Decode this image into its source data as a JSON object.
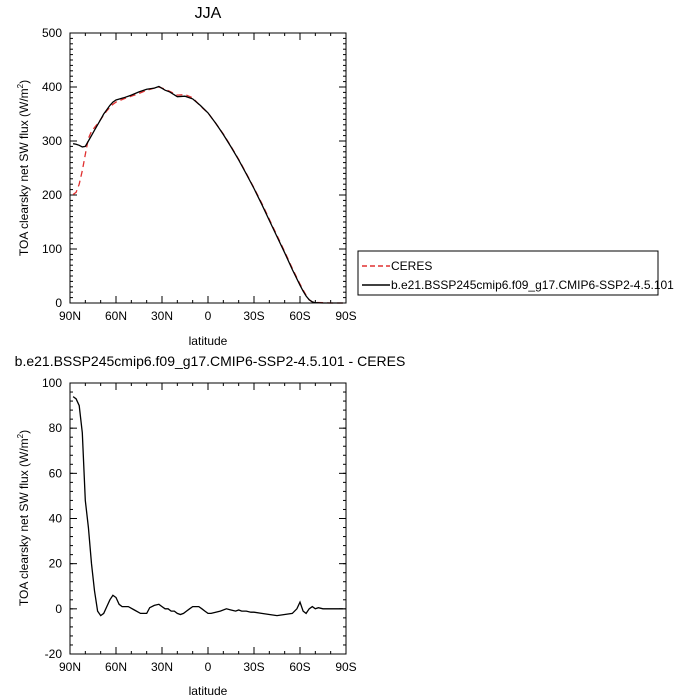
{
  "chart_data": [
    {
      "type": "line",
      "title": "JJA",
      "xlabel": "latitude",
      "ylabel": "TOA clearsky net SW flux (W/m",
      "ylabel_sup": "2",
      "ylabel_close": ")",
      "xlim": [
        90,
        -90
      ],
      "ylim": [
        0,
        500
      ],
      "xticks": [
        90,
        60,
        30,
        0,
        -30,
        -60,
        -90
      ],
      "xtick_labels": [
        "90N",
        "60N",
        "30N",
        "0",
        "30S",
        "60S",
        "90S"
      ],
      "yticks": [
        0,
        100,
        200,
        300,
        400,
        500
      ],
      "ytick_labels": [
        "0",
        "100",
        "200",
        "300",
        "400",
        "500"
      ],
      "legend": {
        "position": "right"
      },
      "series": [
        {
          "name": "CERES",
          "color": "#e03030",
          "dash": "dashed",
          "x": [
            88,
            86,
            84,
            82,
            80,
            78,
            76,
            74,
            72,
            70,
            68,
            66,
            64,
            62,
            60,
            55,
            50,
            45,
            40,
            35,
            32,
            28,
            25,
            20,
            15,
            10,
            5,
            0,
            -5,
            -10,
            -15,
            -20,
            -25,
            -30,
            -35,
            -40,
            -45,
            -50,
            -55,
            -60,
            -62,
            -64,
            -66,
            -68,
            -70,
            -75,
            -80,
            -85,
            -88
          ],
          "y": [
            201,
            205,
            220,
            245,
            275,
            305,
            318,
            325,
            332,
            340,
            348,
            356,
            362,
            368,
            372,
            378,
            383,
            388,
            394,
            398,
            400,
            396,
            392,
            385,
            386,
            380,
            365,
            352,
            333,
            313,
            290,
            266,
            240,
            213,
            185,
            155,
            125,
            95,
            64,
            35,
            24,
            14,
            6,
            2,
            1,
            0.5,
            0,
            0,
            0
          ]
        },
        {
          "name": "b.e21.BSSP245cmip6.f09_g17.CMIP6-SSP2-4.5.101",
          "color": "#000000",
          "dash": "solid",
          "x": [
            88,
            86,
            84,
            82,
            80,
            78,
            76,
            74,
            72,
            70,
            68,
            66,
            64,
            62,
            60,
            55,
            50,
            45,
            40,
            35,
            32,
            28,
            25,
            20,
            15,
            10,
            5,
            0,
            -5,
            -10,
            -15,
            -20,
            -25,
            -30,
            -35,
            -40,
            -45,
            -50,
            -55,
            -60,
            -62,
            -64,
            -66,
            -68,
            -70,
            -75,
            -80,
            -85,
            -88
          ],
          "y": [
            295,
            294,
            292,
            289,
            290,
            300,
            310,
            320,
            330,
            340,
            350,
            358,
            366,
            372,
            376,
            380,
            385,
            391,
            396,
            398,
            401,
            394,
            391,
            382,
            383,
            378,
            366,
            352,
            333,
            312,
            289,
            265,
            239,
            212,
            183,
            153,
            123,
            93,
            62,
            33,
            22,
            13,
            6,
            2,
            0.5,
            0,
            0,
            0,
            0
          ]
        }
      ]
    },
    {
      "type": "line",
      "title": "b.e21.BSSP245cmip6.f09_g17.CMIP6-SSP2-4.5.101 - CERES",
      "xlabel": "latitude",
      "ylabel": "TOA clearsky net SW flux (W/m",
      "ylabel_sup": "2",
      "ylabel_close": ")",
      "xlim": [
        90,
        -90
      ],
      "ylim": [
        -20,
        100
      ],
      "xticks": [
        90,
        60,
        30,
        0,
        -30,
        -60,
        -90
      ],
      "xtick_labels": [
        "90N",
        "60N",
        "30N",
        "0",
        "30S",
        "60S",
        "90S"
      ],
      "yticks": [
        -20,
        0,
        20,
        40,
        60,
        80,
        100
      ],
      "ytick_labels": [
        "-20",
        "0",
        "20",
        "40",
        "60",
        "80",
        "100"
      ],
      "series": [
        {
          "color": "#000000",
          "dash": "solid",
          "x": [
            88,
            86,
            84,
            82,
            80,
            78,
            76,
            74,
            72,
            70,
            68,
            66,
            64,
            62,
            60,
            58,
            56,
            52,
            48,
            44,
            40,
            38,
            35,
            32,
            30,
            28,
            26,
            24,
            22,
            20,
            18,
            16,
            14,
            12,
            10,
            8,
            6,
            4,
            2,
            0,
            -2,
            -5,
            -8,
            -12,
            -15,
            -18,
            -20,
            -22,
            -25,
            -28,
            -30,
            -35,
            -40,
            -45,
            -50,
            -55,
            -58,
            -60,
            -62,
            -64,
            -66,
            -68,
            -70,
            -72,
            -75,
            -80,
            -85,
            -88
          ],
          "y": [
            94,
            93,
            90,
            78,
            48,
            36,
            20,
            8,
            -1,
            -3,
            -2,
            1,
            4,
            6,
            5,
            2,
            1,
            1,
            -0.5,
            -2,
            -2,
            0.5,
            1.5,
            2,
            1,
            0,
            0,
            -1,
            -1,
            -2,
            -2.5,
            -2,
            -1,
            0,
            1,
            1,
            1,
            0,
            -1,
            -2,
            -2,
            -1.5,
            -1,
            0,
            -0.5,
            -1,
            -0.5,
            -1,
            -1,
            -1.5,
            -1.5,
            -2,
            -2.5,
            -3,
            -2.5,
            -2,
            0,
            3,
            -1,
            -2,
            0,
            1,
            0,
            0.5,
            0,
            0,
            0,
            0
          ]
        }
      ]
    }
  ]
}
